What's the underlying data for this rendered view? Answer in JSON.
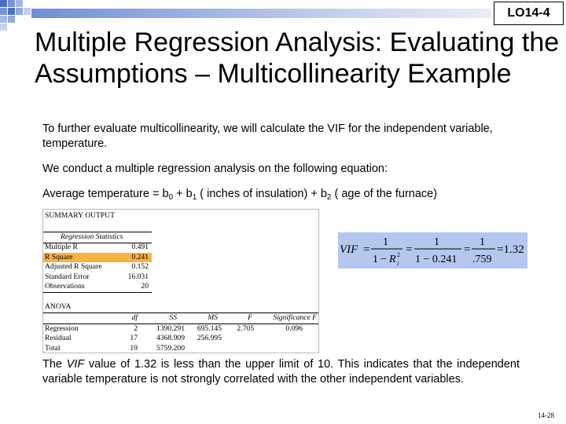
{
  "header": {
    "lo_label": "LO14-4"
  },
  "title": "Multiple Regression Analysis: Evaluating the Assumptions – Multicollinearity Example",
  "paragraphs": {
    "intro": "To further evaluate multicollinearity, we will calculate the VIF for the independent variable, temperature.",
    "conduct": "We conduct a multiple regression analysis on the following equation:",
    "equation": {
      "lhs": "Average temperature = b",
      "b0_sub": "0",
      "plus1": " + b",
      "b1_sub": "1",
      "term1": " ( inches of insulation) + b",
      "b2_sub": "2",
      "term2": " ( age of the furnace)"
    },
    "conclusion_pre": "The ",
    "conclusion_vif": "VIF",
    "conclusion_post": " value of 1.32 is less than the upper limit of 10. This indicates that the independent variable temperature is not strongly correlated with the other independent variables."
  },
  "summary_output": {
    "title": "SUMMARY OUTPUT",
    "regression_statistics_header": "Regression Statistics",
    "stats": [
      {
        "label": "Multiple R",
        "value": "0.491"
      },
      {
        "label": "R Square",
        "value": "0.241"
      },
      {
        "label": "Adjusted R Square",
        "value": "0.152"
      },
      {
        "label": "Standard Error",
        "value": "16.031"
      },
      {
        "label": "Observations",
        "value": "20"
      }
    ],
    "anova_title": "ANOVA",
    "anova_headers": [
      "df",
      "SS",
      "MS",
      "F",
      "Significance F"
    ],
    "anova_rows": [
      {
        "label": "Regression",
        "df": "2",
        "ss": "1390.291",
        "ms": "695.145",
        "f": "2.705",
        "sig": "0.096"
      },
      {
        "label": "Residual",
        "df": "17",
        "ss": "4368.909",
        "ms": "256.995",
        "f": "",
        "sig": ""
      },
      {
        "label": "Total",
        "df": "19",
        "ss": "5759.200",
        "ms": "",
        "f": "",
        "sig": ""
      }
    ]
  },
  "vif_formula": {
    "lhs": "VIF",
    "eq": "=",
    "num": "1",
    "den1_one": "1",
    "den1_minus": "−",
    "den1_r": "R",
    "den1_r_sup": "2",
    "den1_r_sub": "i",
    "den2": "1 − 0.241",
    "den3": ".759",
    "result": "=1.32"
  },
  "footer": {
    "page_number": "14-28"
  },
  "colors": {
    "highlight": "#f7b244",
    "formula_bg": "#b4c7ee",
    "accent": "#4a6fc9"
  }
}
